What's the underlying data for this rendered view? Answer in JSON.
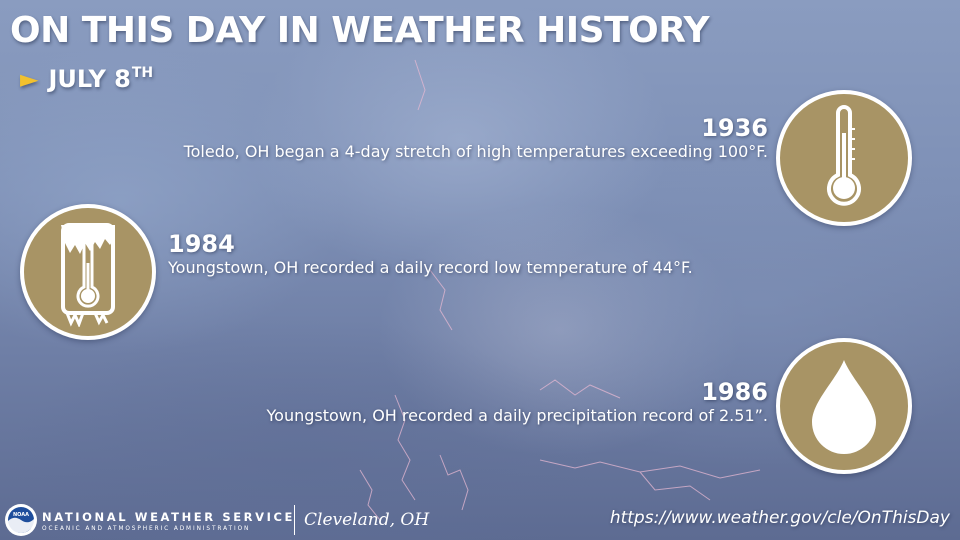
{
  "header": {
    "title": "ON THIS DAY IN WEATHER HISTORY",
    "date_arrow": "►",
    "date": "JULY 8",
    "date_suffix": "TH"
  },
  "events": [
    {
      "year": "1936",
      "description": "Toledo, OH began a 4-day stretch of high temperatures exceeding 100°F.",
      "icon": "thermometer-hot-icon"
    },
    {
      "year": "1984",
      "description": "Youngstown, OH recorded a daily record low temperature of 44°F.",
      "icon": "thermometer-frozen-icon"
    },
    {
      "year": "1986",
      "description": "Youngstown, OH recorded a daily precipitation record of 2.51”.",
      "icon": "raindrop-icon"
    }
  ],
  "footer": {
    "agency": "NATIONAL WEATHER SERVICE",
    "agency_sub": "OCEANIC AND ATMOSPHERIC ADMINISTRATION",
    "office": "Cleveland, OH",
    "url": "https://www.weather.gov/cle/OnThisDay",
    "logo_text": "NOAA"
  },
  "colors": {
    "badge_fill": "#a89465",
    "badge_border": "#ffffff",
    "arrow": "#f2c12e",
    "text": "#ffffff",
    "sky": "#7e90b6"
  }
}
